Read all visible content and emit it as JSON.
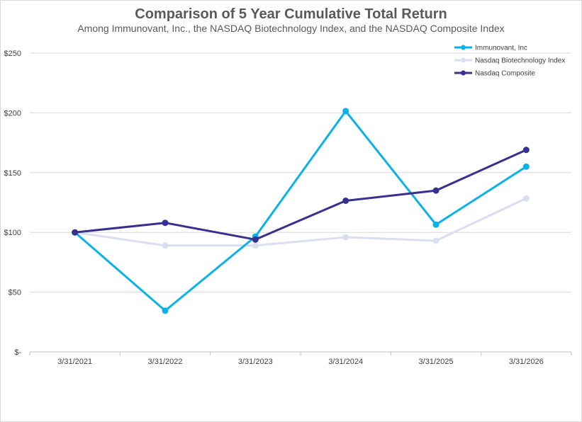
{
  "chart_data": {
    "type": "line",
    "title": "Comparison of 5 Year Cumulative Total Return",
    "subtitle": "Among Immunovant, Inc., the NASDAQ Biotechnology Index, and the NASDAQ Composite Index",
    "categories": [
      "3/31/2021",
      "3/31/2022",
      "3/31/2023",
      "3/31/2024",
      "3/31/2025",
      "3/31/2026"
    ],
    "ylim": [
      0,
      250
    ],
    "yticks": [
      0,
      50,
      100,
      150,
      200,
      250
    ],
    "ytick_labels": [
      "$-",
      "$50",
      "$100",
      "$150",
      "$200",
      "$250"
    ],
    "grid": true,
    "legend_position": "top-right",
    "series": [
      {
        "name": "Immunovant, Inc",
        "color": "#0bb2e8",
        "values": [
          100,
          34.5,
          96.5,
          201.5,
          106.5,
          155
        ]
      },
      {
        "name": "Nasdaq Biotechnology Index",
        "color": "#d9dff0",
        "values": [
          100,
          89,
          89,
          96,
          93,
          128.5
        ]
      },
      {
        "name": "Nasdaq Composite",
        "color": "#37308f",
        "values": [
          100,
          108,
          94,
          126.5,
          135,
          169
        ]
      }
    ]
  }
}
